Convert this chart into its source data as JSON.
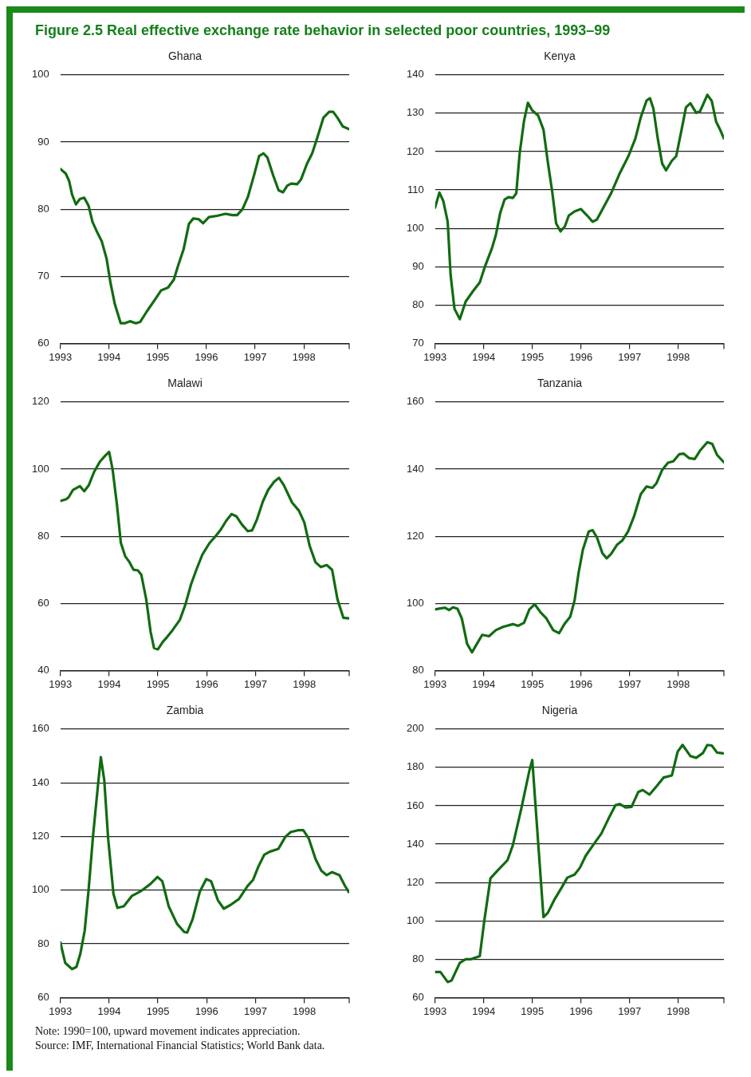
{
  "chart_data": [
    {
      "type": "line",
      "title": "Ghana",
      "annotations": [
        "Figure 2.5  Real effective exchange rate behavior in selected poor countries, 1993–99"
      ],
      "color": "#116b11",
      "grid": "y",
      "x": [
        1993.0,
        1993.11,
        1993.18,
        1993.24,
        1993.32,
        1993.4,
        1993.49,
        1993.58,
        1993.66,
        1993.76,
        1993.85,
        1993.95,
        1994.03,
        1994.12,
        1994.24,
        1994.32,
        1994.43,
        1994.55,
        1994.64,
        1994.78,
        1994.95,
        1995.07,
        1995.21,
        1995.33,
        1995.41,
        1995.53,
        1995.64,
        1995.73,
        1995.84,
        1995.93,
        1996.05,
        1996.22,
        1996.39,
        1996.53,
        1996.63,
        1996.74,
        1996.85,
        1996.99,
        1997.08,
        1997.17,
        1997.25,
        1997.37,
        1997.48,
        1997.57,
        1997.66,
        1997.74,
        1997.86,
        1997.94,
        1998.06,
        1998.17,
        1998.26,
        1998.4,
        1998.52,
        1998.6,
        1998.69,
        1998.8,
        1998.93
      ],
      "values": [
        86.0,
        85.3,
        84.2,
        82.2,
        80.7,
        81.5,
        81.7,
        80.5,
        78.1,
        76.5,
        75.2,
        72.6,
        69.0,
        65.8,
        63.0,
        63.0,
        63.3,
        63.0,
        63.2,
        64.8,
        66.6,
        67.9,
        68.3,
        69.5,
        71.4,
        74.0,
        77.8,
        78.6,
        78.5,
        77.9,
        78.8,
        79.0,
        79.3,
        79.1,
        79.1,
        80.0,
        81.8,
        85.4,
        87.9,
        88.3,
        87.7,
        85.0,
        82.8,
        82.5,
        83.5,
        83.8,
        83.7,
        84.4,
        86.7,
        88.3,
        90.3,
        93.6,
        94.5,
        94.5,
        93.6,
        92.3,
        91.9
      ],
      "xlim": [
        1993,
        1998.93
      ],
      "xticks": [
        1993,
        1994,
        1995,
        1996,
        1997,
        1998
      ],
      "ylim": [
        60,
        100
      ],
      "yticks": [
        60,
        70,
        80,
        90,
        100
      ]
    },
    {
      "type": "line",
      "title": "Kenya",
      "color": "#116b11",
      "grid": "y",
      "x": [
        1993.0,
        1993.09,
        1993.17,
        1993.26,
        1993.32,
        1993.4,
        1993.51,
        1993.63,
        1993.78,
        1993.92,
        1994.02,
        1994.17,
        1994.25,
        1994.34,
        1994.43,
        1994.51,
        1994.6,
        1994.67,
        1994.74,
        1994.83,
        1994.91,
        1995.0,
        1995.12,
        1995.23,
        1995.32,
        1995.41,
        1995.49,
        1995.58,
        1995.67,
        1995.75,
        1995.87,
        1996.0,
        1996.13,
        1996.24,
        1996.33,
        1996.47,
        1996.62,
        1996.79,
        1996.98,
        1997.12,
        1997.23,
        1997.35,
        1997.42,
        1997.49,
        1997.58,
        1997.67,
        1997.75,
        1997.87,
        1997.96,
        1998.07,
        1998.16,
        1998.25,
        1998.37,
        1998.45,
        1998.6,
        1998.69,
        1998.78,
        1998.87,
        1998.94
      ],
      "values": [
        105.4,
        109.3,
        107.1,
        101.7,
        87.8,
        79.0,
        76.3,
        80.9,
        83.6,
        85.9,
        89.8,
        94.8,
        98.2,
        104.0,
        107.5,
        108.1,
        107.9,
        109.1,
        119.5,
        128.0,
        132.7,
        130.7,
        129.4,
        125.7,
        117.2,
        109.5,
        101.3,
        99.2,
        100.5,
        103.3,
        104.4,
        105.0,
        103.3,
        101.7,
        102.3,
        105.6,
        109.1,
        114.1,
        118.9,
        123.4,
        128.9,
        133.3,
        133.9,
        131.2,
        123.4,
        116.9,
        115.1,
        117.6,
        118.8,
        125.7,
        131.5,
        132.6,
        130.1,
        130.5,
        134.8,
        133.2,
        127.8,
        125.5,
        123.4
      ],
      "xlim": [
        1993,
        1998.94
      ],
      "xticks": [
        1993,
        1994,
        1995,
        1996,
        1997,
        1998
      ],
      "ylim": [
        70,
        140
      ],
      "yticks": [
        70,
        80,
        90,
        100,
        110,
        120,
        130,
        140
      ]
    },
    {
      "type": "line",
      "title": "Malawi",
      "color": "#116b11",
      "grid": "y",
      "x": [
        1993.0,
        1993.12,
        1993.17,
        1993.26,
        1993.4,
        1993.49,
        1993.58,
        1993.69,
        1993.81,
        1993.92,
        1994.0,
        1994.07,
        1994.16,
        1994.24,
        1994.33,
        1994.42,
        1994.5,
        1994.59,
        1994.66,
        1994.76,
        1994.85,
        1994.92,
        1995.0,
        1995.1,
        1995.19,
        1995.3,
        1995.45,
        1995.56,
        1995.68,
        1995.79,
        1995.91,
        1996.06,
        1996.17,
        1996.29,
        1996.4,
        1996.51,
        1996.61,
        1996.72,
        1996.84,
        1996.93,
        1997.03,
        1997.15,
        1997.26,
        1997.38,
        1997.48,
        1997.58,
        1997.75,
        1997.89,
        1998.0,
        1998.11,
        1998.23,
        1998.34,
        1998.46,
        1998.57,
        1998.68,
        1998.8,
        1998.92
      ],
      "values": [
        90.5,
        91.0,
        91.6,
        93.8,
        94.9,
        93.4,
        95.1,
        99.1,
        102.2,
        104.0,
        105.1,
        100.0,
        89.4,
        78.0,
        74.0,
        72.2,
        70.0,
        69.8,
        68.5,
        61.2,
        51.5,
        46.7,
        46.3,
        48.5,
        50.0,
        52.0,
        55.1,
        59.5,
        65.7,
        70.1,
        74.5,
        78.0,
        79.8,
        82.0,
        84.6,
        86.6,
        85.9,
        83.5,
        81.5,
        81.7,
        85.0,
        90.3,
        93.8,
        96.2,
        97.4,
        95.2,
        90.0,
        87.6,
        84.1,
        77.1,
        72.2,
        70.8,
        71.4,
        70.0,
        61.2,
        55.7,
        55.5
      ],
      "xlim": [
        1993,
        1998.92
      ],
      "xticks": [
        1993,
        1994,
        1995,
        1996,
        1997,
        1998
      ],
      "ylim": [
        40,
        120
      ],
      "yticks": [
        40,
        60,
        80,
        100,
        120
      ]
    },
    {
      "type": "line",
      "title": "Tanzania",
      "color": "#116b11",
      "grid": "y",
      "x": [
        1993.0,
        1993.11,
        1993.2,
        1993.29,
        1993.37,
        1993.46,
        1993.55,
        1993.66,
        1993.76,
        1993.86,
        1993.97,
        1994.11,
        1994.25,
        1994.4,
        1994.6,
        1994.71,
        1994.83,
        1994.94,
        1995.05,
        1995.17,
        1995.29,
        1995.43,
        1995.55,
        1995.66,
        1995.78,
        1995.87,
        1995.95,
        1996.04,
        1996.16,
        1996.24,
        1996.33,
        1996.44,
        1996.53,
        1996.62,
        1996.74,
        1996.85,
        1996.97,
        1997.09,
        1997.23,
        1997.35,
        1997.47,
        1997.55,
        1997.67,
        1997.79,
        1997.9,
        1998.02,
        1998.11,
        1998.22,
        1998.34,
        1998.45,
        1998.6,
        1998.7,
        1998.8,
        1998.94
      ],
      "values": [
        98.2,
        98.5,
        98.7,
        98.0,
        98.8,
        98.4,
        95.5,
        87.9,
        85.4,
        87.9,
        90.6,
        90.2,
        92.0,
        93.0,
        93.8,
        93.3,
        94.2,
        98.2,
        99.7,
        97.3,
        95.5,
        92.0,
        91.1,
        93.8,
        96.0,
        100.9,
        108.9,
        116.0,
        121.4,
        121.8,
        119.6,
        115.0,
        113.4,
        114.7,
        117.4,
        118.7,
        121.4,
        125.8,
        132.5,
        134.8,
        134.4,
        135.7,
        139.7,
        141.9,
        142.3,
        144.4,
        144.6,
        143.3,
        143.0,
        145.5,
        148.0,
        147.5,
        144.2,
        142.0
      ],
      "xlim": [
        1993,
        1998.94
      ],
      "xticks": [
        1993,
        1994,
        1995,
        1996,
        1997,
        1998
      ],
      "ylim": [
        80,
        160
      ],
      "yticks": [
        80,
        100,
        120,
        140,
        160
      ]
    },
    {
      "type": "line",
      "title": "Zambia",
      "annotations": [
        "Note: 1990=100, upward movement indicates appreciation.",
        "Source:  IMF, International Financial Statistics; World Bank data."
      ],
      "color": "#116b11",
      "grid": "y",
      "x": [
        1993.0,
        1993.1,
        1993.24,
        1993.33,
        1993.41,
        1993.5,
        1993.58,
        1993.67,
        1993.77,
        1993.83,
        1993.9,
        1993.98,
        1994.09,
        1994.17,
        1994.3,
        1994.47,
        1994.64,
        1994.84,
        1994.99,
        1995.09,
        1995.22,
        1995.39,
        1995.54,
        1995.6,
        1995.71,
        1995.86,
        1995.99,
        1996.09,
        1996.23,
        1996.35,
        1996.49,
        1996.66,
        1996.84,
        1996.95,
        1997.06,
        1997.18,
        1997.29,
        1997.47,
        1997.61,
        1997.72,
        1997.87,
        1997.98,
        1998.09,
        1998.23,
        1998.35,
        1998.46,
        1998.57,
        1998.72,
        1998.83,
        1998.91
      ],
      "values": [
        80.5,
        72.9,
        70.6,
        71.4,
        76.3,
        85.0,
        100.3,
        120.2,
        138.8,
        149.5,
        141.0,
        119.1,
        98.5,
        93.4,
        94.0,
        97.9,
        99.5,
        102.2,
        104.9,
        103.3,
        94.0,
        87.5,
        84.4,
        84.2,
        89.1,
        99.5,
        104.1,
        103.3,
        96.2,
        93.1,
        94.5,
        96.7,
        101.6,
        103.8,
        108.8,
        113.2,
        114.3,
        115.4,
        119.8,
        121.6,
        122.3,
        122.3,
        119.3,
        111.6,
        107.2,
        105.6,
        106.7,
        105.6,
        101.7,
        99.3
      ],
      "xlim": [
        1993,
        1998.92
      ],
      "xticks": [
        1993,
        1994,
        1995,
        1996,
        1997,
        1998
      ],
      "ylim": [
        60,
        160
      ],
      "yticks": [
        60,
        80,
        100,
        120,
        140,
        160
      ]
    },
    {
      "type": "line",
      "title": "Nigeria",
      "color": "#116b11",
      "grid": "y",
      "x": [
        1993.0,
        1993.11,
        1993.26,
        1993.34,
        1993.51,
        1993.63,
        1993.74,
        1993.92,
        1994.01,
        1994.14,
        1994.31,
        1994.49,
        1994.6,
        1994.77,
        1994.94,
        1995.0,
        1995.09,
        1995.23,
        1995.32,
        1995.46,
        1995.61,
        1995.72,
        1995.87,
        1995.98,
        1996.1,
        1996.27,
        1996.42,
        1996.57,
        1996.71,
        1996.8,
        1996.92,
        1997.04,
        1997.18,
        1997.27,
        1997.41,
        1997.56,
        1997.7,
        1997.87,
        1997.99,
        1998.09,
        1998.25,
        1998.37,
        1998.51,
        1998.6,
        1998.69,
        1998.8,
        1998.94
      ],
      "values": [
        73.3,
        73.3,
        68.1,
        68.9,
        78.1,
        80.0,
        80.0,
        81.6,
        99.5,
        122.2,
        126.9,
        131.6,
        139.4,
        158.1,
        178.3,
        183.8,
        151.6,
        101.9,
        104.2,
        111.3,
        117.6,
        122.5,
        124.1,
        127.7,
        134.0,
        140.2,
        145.5,
        153.4,
        160.3,
        160.9,
        159.1,
        159.4,
        167.2,
        168.2,
        165.8,
        170.3,
        174.7,
        175.8,
        188.2,
        191.7,
        185.9,
        185.0,
        187.5,
        191.7,
        191.4,
        187.7,
        187.3
      ],
      "xlim": [
        1993,
        1998.94
      ],
      "xticks": [
        1993,
        1994,
        1995,
        1996,
        1997,
        1998
      ],
      "ylim": [
        60,
        200
      ],
      "yticks": [
        60,
        80,
        100,
        120,
        140,
        160,
        180,
        200
      ]
    }
  ]
}
